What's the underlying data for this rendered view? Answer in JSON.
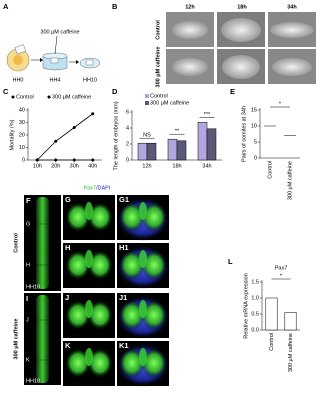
{
  "panel_a": {
    "label": "A",
    "stages": [
      "HH0",
      "HH4",
      "HH10"
    ],
    "treatment": "300 μM caffeine"
  },
  "panel_b": {
    "label": "B",
    "columns": [
      "12h",
      "18h",
      "34h"
    ],
    "rows": [
      "Control",
      "300 μM caffeine"
    ]
  },
  "panel_f": {
    "heading_green": "Pax7",
    "heading_blue": "/DAPI",
    "rows": [
      "Control",
      "300 μM caffeine"
    ],
    "stage_labels": [
      "HH10",
      "HH10"
    ],
    "panel_labels": [
      "F",
      "G",
      "G1",
      "H",
      "H1",
      "I",
      "J",
      "J1",
      "K",
      "K1"
    ],
    "section_markers": [
      "G",
      "H",
      "J",
      "K"
    ]
  },
  "chart_data": [
    {
      "type": "line",
      "label": "C",
      "categories": [
        "10h",
        "20h",
        "30h",
        "40h"
      ],
      "series": [
        {
          "name": "Control",
          "color": "#000000",
          "values": [
            0,
            0,
            0,
            0
          ]
        },
        {
          "name": "300 μM caffeine",
          "color": "#000000",
          "values": [
            0,
            15,
            26,
            37
          ]
        }
      ],
      "ylabel": "Mortality (%)",
      "ylim": [
        0,
        40
      ],
      "yticks": [
        0,
        10,
        20,
        30,
        40
      ]
    },
    {
      "type": "bar",
      "label": "D",
      "categories": [
        "12h",
        "18h",
        "34h"
      ],
      "series": [
        {
          "name": "Control",
          "color": "#b3a6e0",
          "values": [
            2.1,
            2.6,
            4.7
          ]
        },
        {
          "name": "300 μM caffeine",
          "color": "#5a5a78",
          "values": [
            2.1,
            2.4,
            3.9
          ]
        }
      ],
      "ylabel": "The length of embryos (mm)",
      "ylim": [
        0,
        6
      ],
      "yticks": [
        0,
        2,
        4,
        6
      ],
      "annotations": [
        "NS",
        "**",
        "***"
      ]
    },
    {
      "type": "dotplot",
      "label": "E",
      "categories": [
        "Control",
        "300 μM caffeine"
      ],
      "values": [
        10,
        7
      ],
      "color": "#000000",
      "ylabel": "Pairs of somites at 34h",
      "ylim": [
        0,
        15
      ],
      "yticks": [
        0,
        5,
        10,
        15
      ],
      "annotations": [
        "*"
      ]
    },
    {
      "type": "bar",
      "label": "L",
      "title": "Pax7",
      "categories": [
        "Control",
        "300 μM caffeine"
      ],
      "values": [
        1.0,
        0.55
      ],
      "color": "#ffffff",
      "ylabel": "Relative mRNA expression",
      "ylim": [
        0,
        1.5
      ],
      "yticks": [
        {
          "value": 0,
          "label": "0.0"
        },
        0.5,
        {
          "value": 1.0,
          "label": "1.0"
        },
        1.5
      ],
      "annotations": [
        "*"
      ]
    }
  ]
}
